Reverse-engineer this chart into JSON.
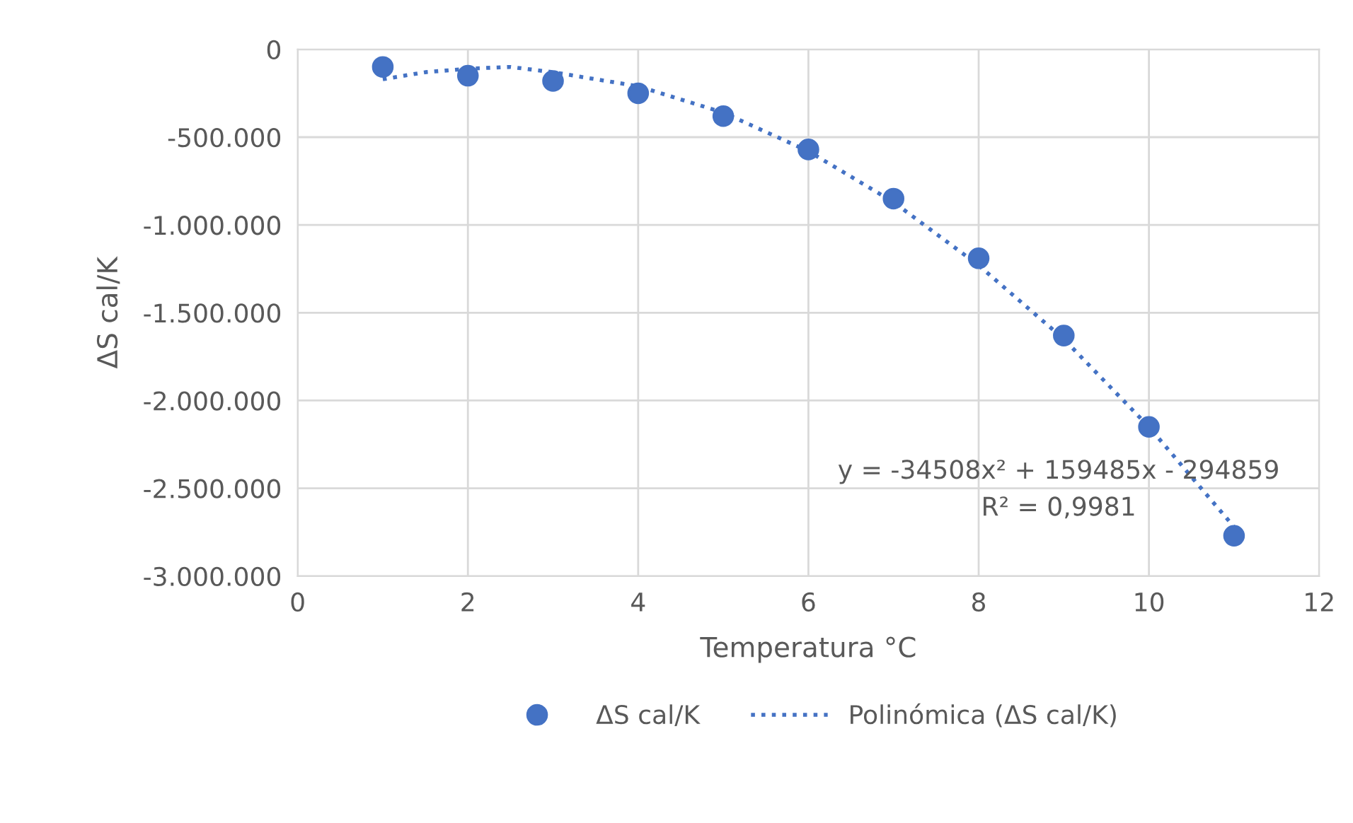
{
  "chart_data": {
    "type": "scatter",
    "xlabel": "Temperatura °C",
    "ylabel": "ΔS cal/K",
    "xlim": [
      0,
      12
    ],
    "xticks": [
      0,
      2,
      4,
      6,
      8,
      10,
      12
    ],
    "ylim": [
      -3000000,
      0
    ],
    "yticks": [
      {
        "value": -3000000,
        "label": "-3.000.000"
      },
      {
        "value": -2500000,
        "label": "-2.500.000"
      },
      {
        "value": -2000000,
        "label": "-2.000.000"
      },
      {
        "value": -1500000,
        "label": "-1.500.000"
      },
      {
        "value": -1000000,
        "label": "-1.000.000"
      },
      {
        "value": -500000,
        "label": "-500.000"
      },
      0
    ],
    "grid": true,
    "legend": "bottom",
    "series": [
      {
        "name": "ΔS cal/K",
        "marker": "circle",
        "color": "#4472c4",
        "x": [
          1,
          2,
          3,
          4,
          5,
          6,
          7,
          8,
          9,
          10,
          11
        ],
        "values": [
          -100000,
          -150000,
          -180000,
          -250000,
          -380000,
          -570000,
          -850000,
          -1190000,
          -1630000,
          -2150000,
          -2770000
        ]
      },
      {
        "name": "Polinómica (ΔS cal/K)",
        "type": "line",
        "line_style": "dotted",
        "color": "#4472c4",
        "x": [
          1,
          1.5,
          2,
          2.5,
          3,
          4,
          5,
          6,
          7,
          8,
          9,
          10,
          11
        ],
        "values": [
          -170000,
          -130000,
          -110000,
          -100000,
          -130000,
          -210000,
          -360000,
          -580000,
          -870000,
          -1230000,
          -1650000,
          -2150000,
          -2720000
        ]
      }
    ],
    "annotations": [
      "y = -34508x² + 159485x - 294859",
      "R² = 0,9981"
    ]
  }
}
